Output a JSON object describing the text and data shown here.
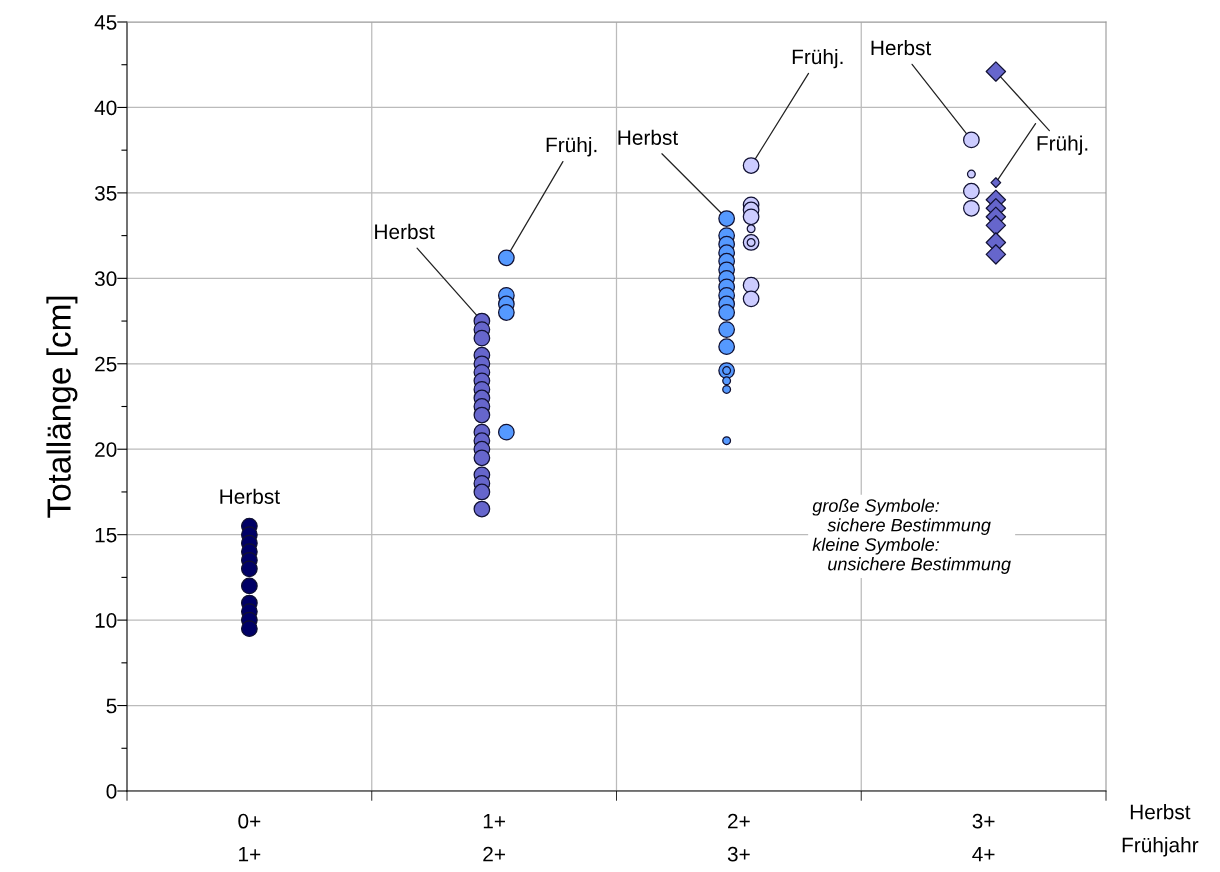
{
  "chart_data": {
    "type": "bubble",
    "ylabel": "Totallänge [cm]",
    "xlabel": "Herbst\nFrühjahr",
    "categories": [
      "0+\n1+",
      "1+\n2+",
      "2+\n3+",
      "3+\n4+"
    ],
    "ylim": [
      0,
      45
    ],
    "yticks": [
      0,
      {
        "value": 2.5,
        "label": null
      },
      5,
      {
        "value": 7.5,
        "label": null
      },
      10,
      {
        "value": 12.5,
        "label": null
      },
      15,
      {
        "value": 17.5,
        "label": null
      },
      20,
      {
        "value": 22.5,
        "label": null
      },
      25,
      {
        "value": 27.5,
        "label": null
      },
      30,
      {
        "value": 32.5,
        "label": null
      },
      35,
      {
        "value": 37.5,
        "label": null
      },
      40,
      {
        "value": 42.5,
        "label": null
      },
      45
    ],
    "grid": true,
    "series": [
      {
        "name": "Herbst",
        "color": "#000066",
        "marker": "circle",
        "x": [
          "0+\n1+",
          "0+\n1+",
          "0+\n1+",
          "0+\n1+",
          "0+\n1+",
          "0+\n1+",
          "0+\n1+",
          "0+\n1+",
          "0+\n1+",
          "0+\n1+",
          "0+\n1+"
        ],
        "values": [
          15.5,
          15,
          14.5,
          14,
          13.5,
          13,
          12,
          11,
          10.5,
          10,
          9.5
        ],
        "sizes": [
          1,
          1,
          1,
          1,
          1,
          1,
          1,
          1,
          1,
          1,
          1
        ]
      },
      {
        "name": "Herbst",
        "color": "#6666cc",
        "marker": "circle",
        "x": [
          "1+\n2+",
          "1+\n2+",
          "1+\n2+",
          "1+\n2+",
          "1+\n2+",
          "1+\n2+",
          "1+\n2+",
          "1+\n2+",
          "1+\n2+",
          "1+\n2+",
          "1+\n2+",
          "1+\n2+",
          "1+\n2+",
          "1+\n2+",
          "1+\n2+",
          "1+\n2+",
          "1+\n2+",
          "1+\n2+",
          "1+\n2+"
        ],
        "values": [
          27.5,
          27,
          26.5,
          25.5,
          25,
          24.5,
          24,
          23.5,
          23,
          22.5,
          22,
          21,
          20.5,
          20,
          19.5,
          18.5,
          18,
          17.5,
          16.5
        ],
        "sizes": [
          1,
          1,
          1,
          1,
          1,
          1,
          1,
          1,
          1,
          1,
          1,
          1,
          1,
          1,
          1,
          1,
          1,
          1,
          1
        ]
      },
      {
        "name": "Frühj.",
        "color": "#5599ff",
        "marker": "circle",
        "x": [
          "1+\n2+",
          "1+\n2+",
          "1+\n2+",
          "1+\n2+",
          "1+\n2+"
        ],
        "values": [
          31.2,
          29,
          28.5,
          28,
          21
        ],
        "sizes": [
          1,
          1,
          1,
          1,
          1
        ]
      },
      {
        "name": "Herbst",
        "color": "#5599ff",
        "marker": "circle",
        "x": [
          "2+\n3+",
          "2+\n3+",
          "2+\n3+",
          "2+\n3+",
          "2+\n3+",
          "2+\n3+",
          "2+\n3+",
          "2+\n3+",
          "2+\n3+",
          "2+\n3+",
          "2+\n3+",
          "2+\n3+",
          "2+\n3+",
          "2+\n3+",
          "2+\n3+",
          "2+\n3+",
          "2+\n3+",
          "2+\n3+"
        ],
        "values": [
          33.5,
          32.5,
          32,
          31.5,
          31,
          30.5,
          30,
          29.5,
          29,
          28.5,
          28,
          27,
          26,
          24.6,
          24.6,
          24,
          23.5,
          20.5
        ],
        "sizes": [
          1,
          1,
          1,
          1,
          1,
          1,
          1,
          1,
          1,
          1,
          1,
          1,
          1,
          0.25,
          1,
          0.25,
          0.25,
          0.25
        ]
      },
      {
        "name": "Frühj.",
        "color": "#ccccff",
        "marker": "circle",
        "x": [
          "2+\n3+",
          "2+\n3+",
          "2+\n3+",
          "2+\n3+",
          "2+\n3+",
          "2+\n3+",
          "2+\n3+",
          "2+\n3+",
          "2+\n3+"
        ],
        "values": [
          36.6,
          34.3,
          34,
          33.6,
          32.9,
          32.1,
          32.1,
          29.6,
          28.8
        ],
        "sizes": [
          1,
          1,
          1,
          1,
          0.25,
          1,
          0.25,
          1,
          1
        ]
      },
      {
        "name": "Herbst",
        "color": "#ccccff",
        "marker": "circle",
        "x": [
          "3+\n4+",
          "3+\n4+",
          "3+\n4+",
          "3+\n4+"
        ],
        "values": [
          38.1,
          36.1,
          35.1,
          34.1
        ],
        "sizes": [
          1,
          0.25,
          1,
          1
        ]
      },
      {
        "name": "Frühj.",
        "color": "#6666cc",
        "marker": "diamond",
        "x": [
          "3+\n4+",
          "3+\n4+",
          "3+\n4+",
          "3+\n4+",
          "3+\n4+",
          "3+\n4+",
          "3+\n4+",
          "3+\n4+"
        ],
        "values": [
          42.1,
          34.6,
          34.1,
          33.6,
          33.1,
          32.1,
          31.4,
          35.6
        ],
        "sizes": [
          1,
          1,
          1,
          1,
          1,
          1,
          1,
          0.25
        ]
      }
    ],
    "annotations": [
      "große Symbole:\n   sichere Bestimmung\nkleine Symbole:\n   unsichere Bestimmung"
    ]
  }
}
